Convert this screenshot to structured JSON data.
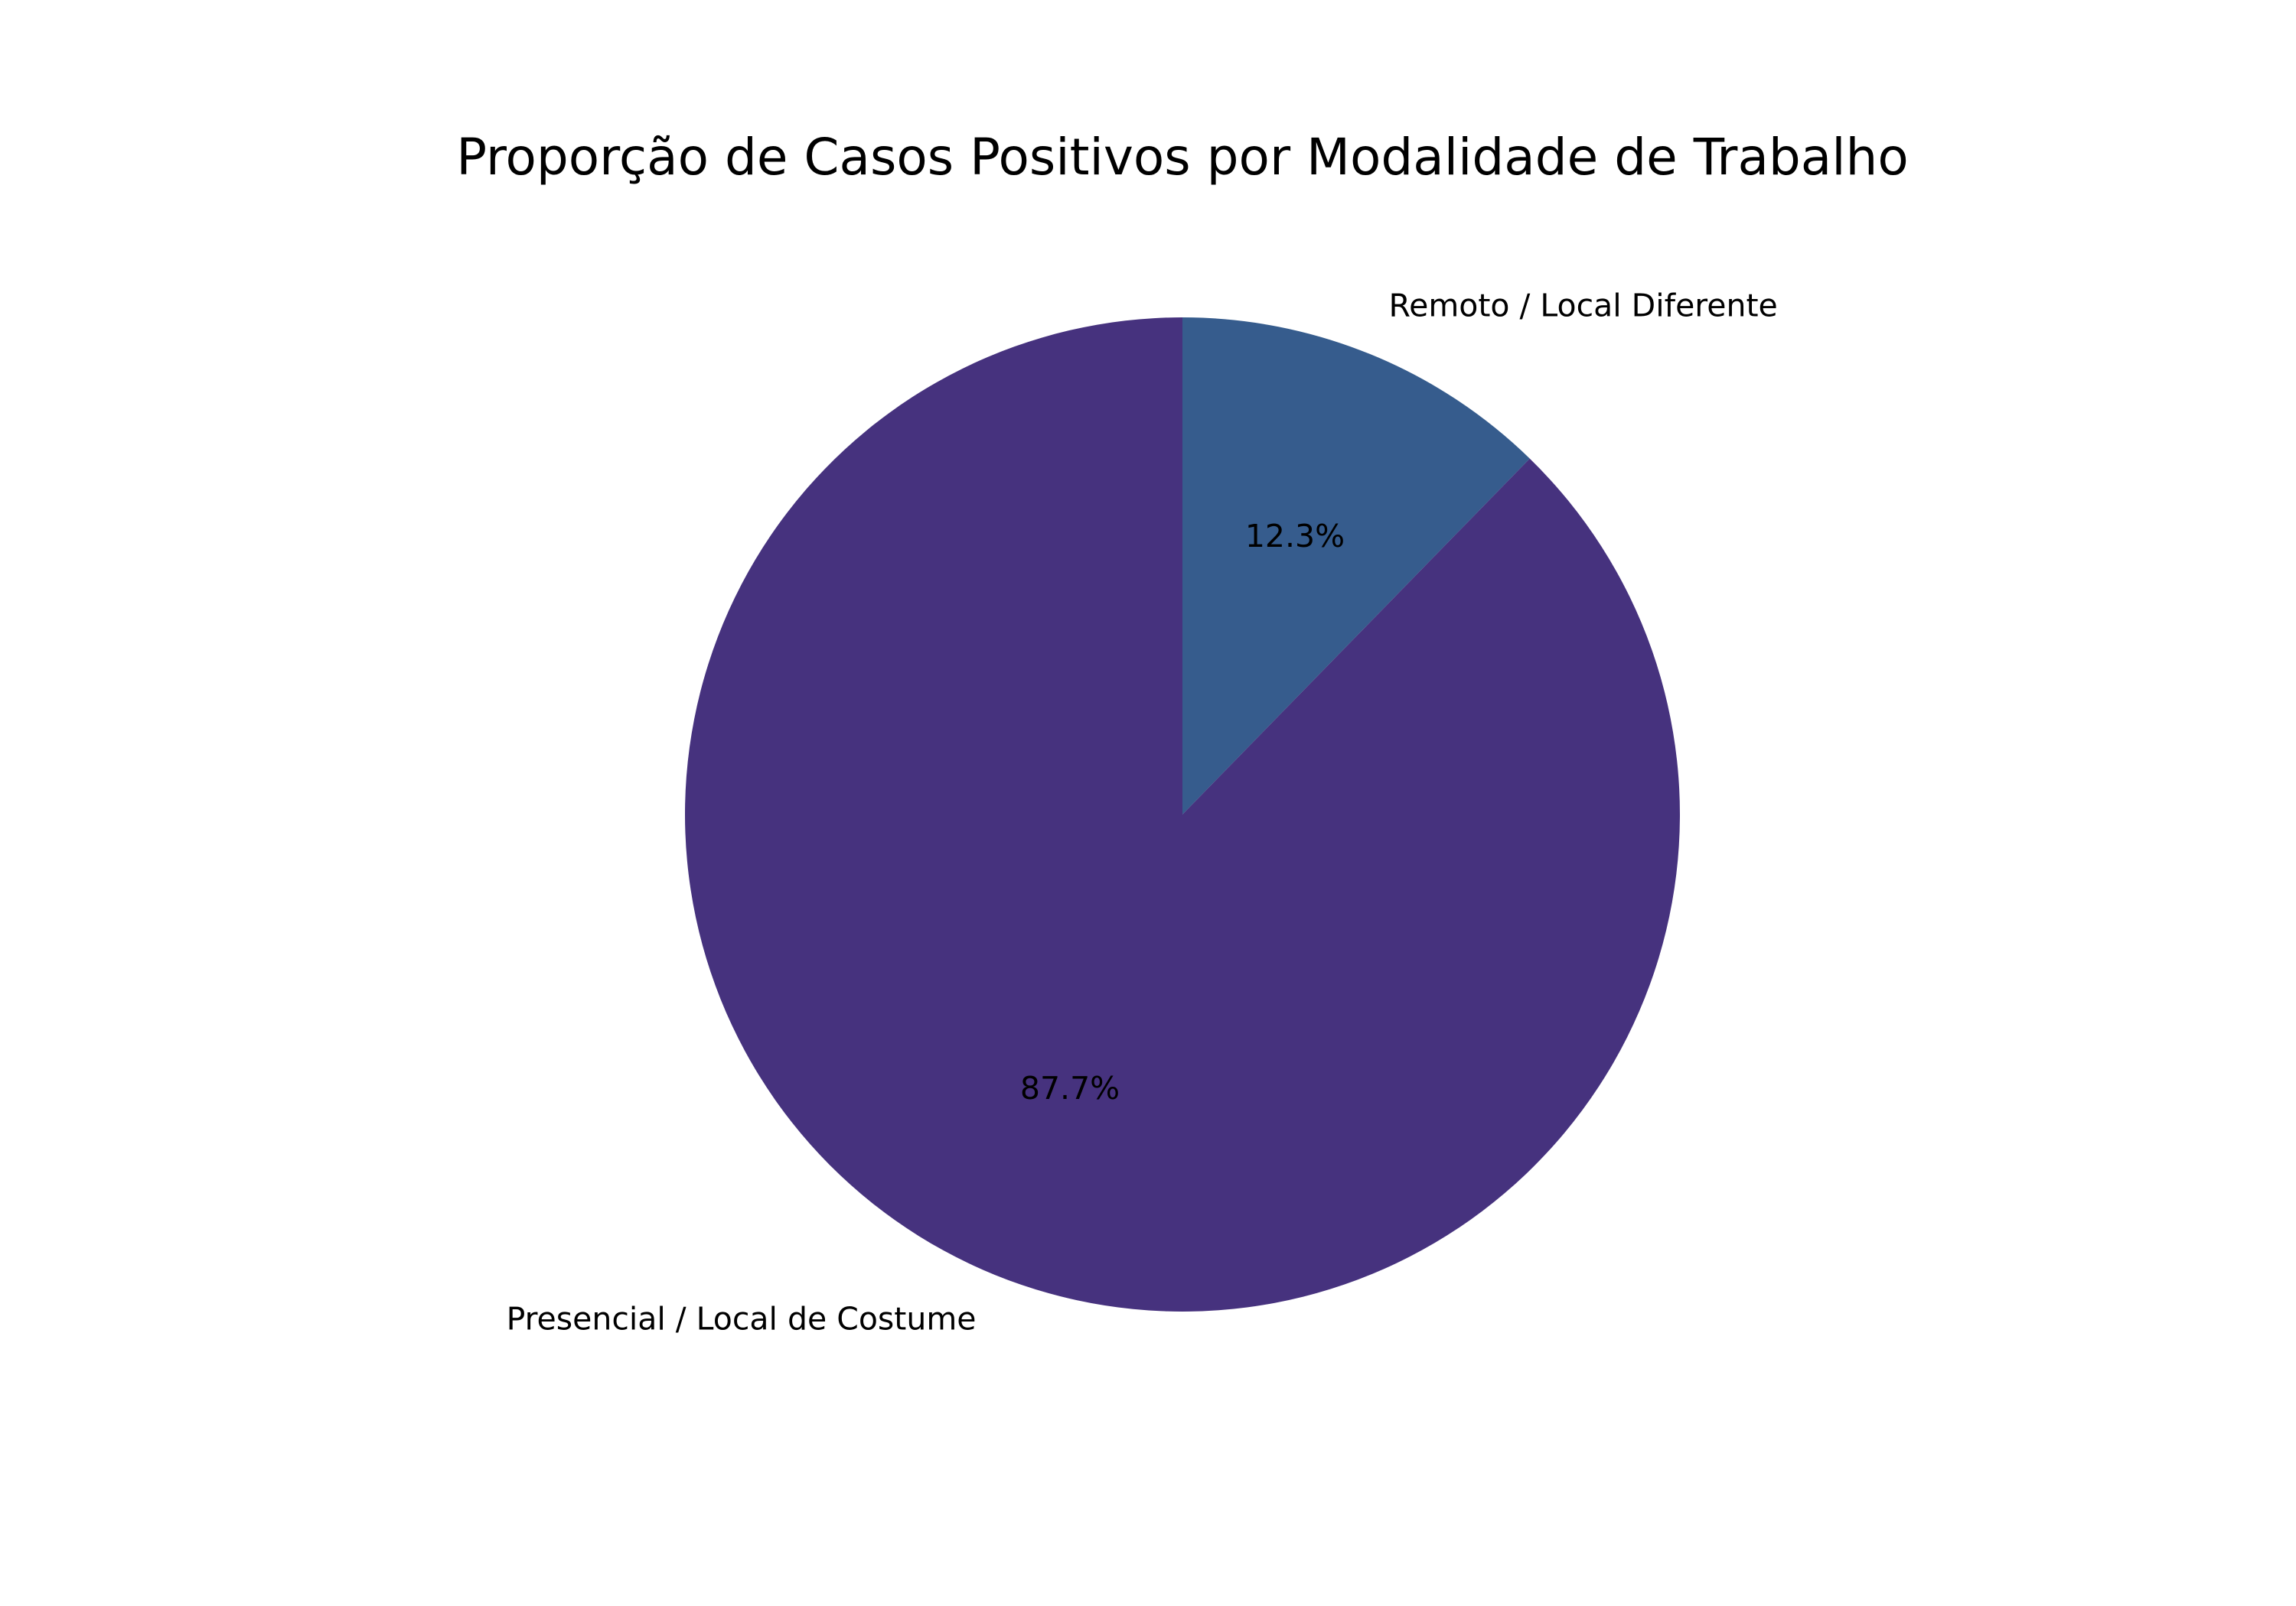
{
  "chart_data": {
    "type": "pie",
    "title": "Proporção de Casos Positivos por Modalidade de Trabalho",
    "slices": [
      {
        "label": "Remoto / Local Diferente",
        "value": 12.3,
        "pct_label": "12.3%",
        "color": "#365C8D"
      },
      {
        "label": "Presencial / Local de Costume",
        "value": 87.7,
        "pct_label": "87.7%",
        "color": "#46327E"
      }
    ],
    "start_angle_deg": 90,
    "direction": "clockwise"
  }
}
